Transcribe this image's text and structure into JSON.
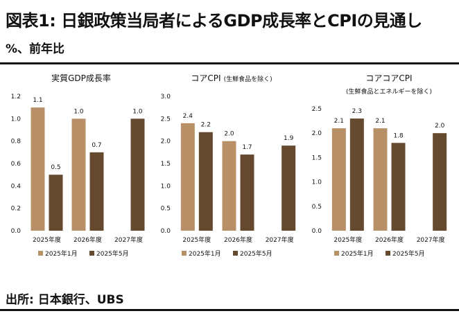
{
  "header": {
    "title": "図表1: 日銀政策当局者によるGDP成長率とCPIの見通し",
    "subtitle": "%、前年比"
  },
  "footer": {
    "source": "出所: 日本銀行、UBS"
  },
  "colors": {
    "jan": "#b89068",
    "may": "#654a30"
  },
  "chart_data": [
    {
      "type": "bar",
      "title": "実質GDP成長率",
      "subtitle": "",
      "categories": [
        "2025年度",
        "2026年度",
        "2027年度"
      ],
      "series": [
        {
          "name": "2025年1月",
          "values": [
            1.1,
            1.0,
            null
          ],
          "labels": [
            "1.1",
            "1.0",
            ""
          ]
        },
        {
          "name": "2025年5月",
          "values": [
            0.5,
            0.7,
            1.0
          ],
          "labels": [
            "0.5",
            "0.7",
            "1.0"
          ]
        }
      ],
      "ylim": [
        0,
        1.2
      ],
      "yticks": [
        "0.0",
        "0.2",
        "0.4",
        "0.6",
        "0.8",
        "1.0",
        "1.2"
      ],
      "grid": false,
      "legend": "bottom"
    },
    {
      "type": "bar",
      "title": "コアCPI",
      "subtitle": "(生鮮食品を除く)",
      "categories": [
        "2025年度",
        "2026年度",
        "2027年度"
      ],
      "series": [
        {
          "name": "2025年1月",
          "values": [
            2.4,
            2.0,
            null
          ],
          "labels": [
            "2.4",
            "2.0",
            ""
          ]
        },
        {
          "name": "2025年5月",
          "values": [
            2.2,
            1.7,
            1.9
          ],
          "labels": [
            "2.2",
            "1.7",
            "1.9"
          ]
        }
      ],
      "ylim": [
        0,
        3.0
      ],
      "yticks": [
        "0.0",
        "0.5",
        "1.0",
        "1.5",
        "2.0",
        "2.5",
        "3.0"
      ],
      "grid": false,
      "legend": "bottom"
    },
    {
      "type": "bar",
      "title": "コアコアCPI",
      "subtitle": "(生鮮食品とエネルギーを除く)",
      "categories": [
        "2025年度",
        "2026年度",
        "2027年度"
      ],
      "series": [
        {
          "name": "2025年1月",
          "values": [
            2.1,
            2.1,
            null
          ],
          "labels": [
            "2.1",
            "2.1",
            ""
          ]
        },
        {
          "name": "2025年5月",
          "values": [
            2.3,
            1.8,
            2.0
          ],
          "labels": [
            "2.3",
            "1.8",
            "2.0"
          ]
        }
      ],
      "ylim": [
        0,
        2.5
      ],
      "yticks": [
        "0.0",
        "0.5",
        "1.0",
        "1.5",
        "2.0",
        "2.5"
      ],
      "grid": false,
      "legend": "bottom"
    }
  ]
}
